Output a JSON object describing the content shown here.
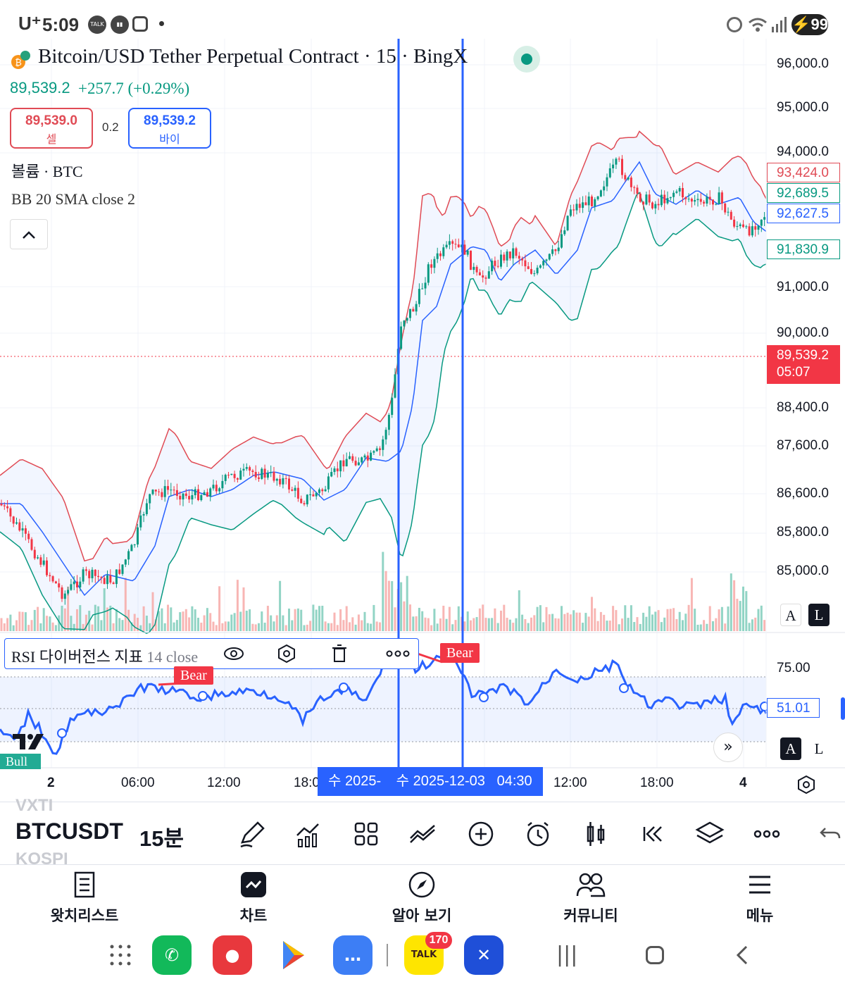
{
  "status_bar": {
    "carrier": "U⁺",
    "time": "5:09",
    "icons": [
      "talk-icon",
      "voice-icon",
      "instagram-icon"
    ],
    "battery": "99"
  },
  "header": {
    "title": "Bitcoin/USD Tether Perpetual Contract · 15 · BingX",
    "last_price": "89,539.2",
    "change": "+257.7 (+0.29%)",
    "sell_price": "89,539.0",
    "sell_label": "셀",
    "spread": "0.2",
    "buy_price": "89,539.2",
    "buy_label": "바이",
    "volume_legend": "볼륨 · BTC",
    "bb_legend": "BB 20 SMA close 2",
    "collapse_icon": "^"
  },
  "price_axis": {
    "labels": [
      "96,000.0",
      "95,000.0",
      "94,000.0",
      "91,000.0",
      "90,000.0",
      "88,400.0",
      "87,600.0",
      "86,600.0",
      "85,800.0",
      "85,000.0"
    ],
    "bb_upper": "93,424.0",
    "bb_basis": "92,689.5",
    "bb_mid_blue": "92,627.5",
    "bb_lower": "91,830.9",
    "last_price": "89,539.2",
    "countdown": "05:07",
    "auto_label": "A",
    "log_label": "L"
  },
  "rsi": {
    "legend": "RSI 다이버전스 지표",
    "params": "14 close",
    "bear_label": "Bear",
    "bull_label": "Bull",
    "level_75": "75.00",
    "value": "51.01",
    "auto_label": "A",
    "log_label": "L",
    "expand_icon": "»"
  },
  "time_axis": {
    "labels": [
      "2",
      "06:00",
      "12:00",
      "18:0",
      "12:00",
      "18:00",
      "4"
    ],
    "cursor_a": "수 2025-",
    "cursor_b": "수 2025-12-03   04:30"
  },
  "toolbar": {
    "ghost_top": "VXTI",
    "ticker": "BTCUSDT",
    "ghost_bottom": "KOSPI",
    "interval": "15분",
    "icons": [
      "pencil-icon",
      "indicators-icon",
      "layout-icon",
      "compare-icon",
      "add-icon",
      "alert-icon",
      "bar-style-icon",
      "replay-icon",
      "layers-icon",
      "more-icon",
      "undo-icon"
    ]
  },
  "bottom_nav": {
    "watchlist": "왓치리스트",
    "chart": "차트",
    "explore": "알아 보기",
    "community": "커뮤니티",
    "menu": "메뉴"
  },
  "dock": {
    "talk_badge": "170",
    "talk_label": "TALK"
  },
  "colors": {
    "up": "#089981",
    "down": "#f23645",
    "bb_upper": "#e04b55",
    "bb_basis": "#2962ff",
    "bb_lower": "#089981",
    "rsi_line": "#2962ff"
  }
}
